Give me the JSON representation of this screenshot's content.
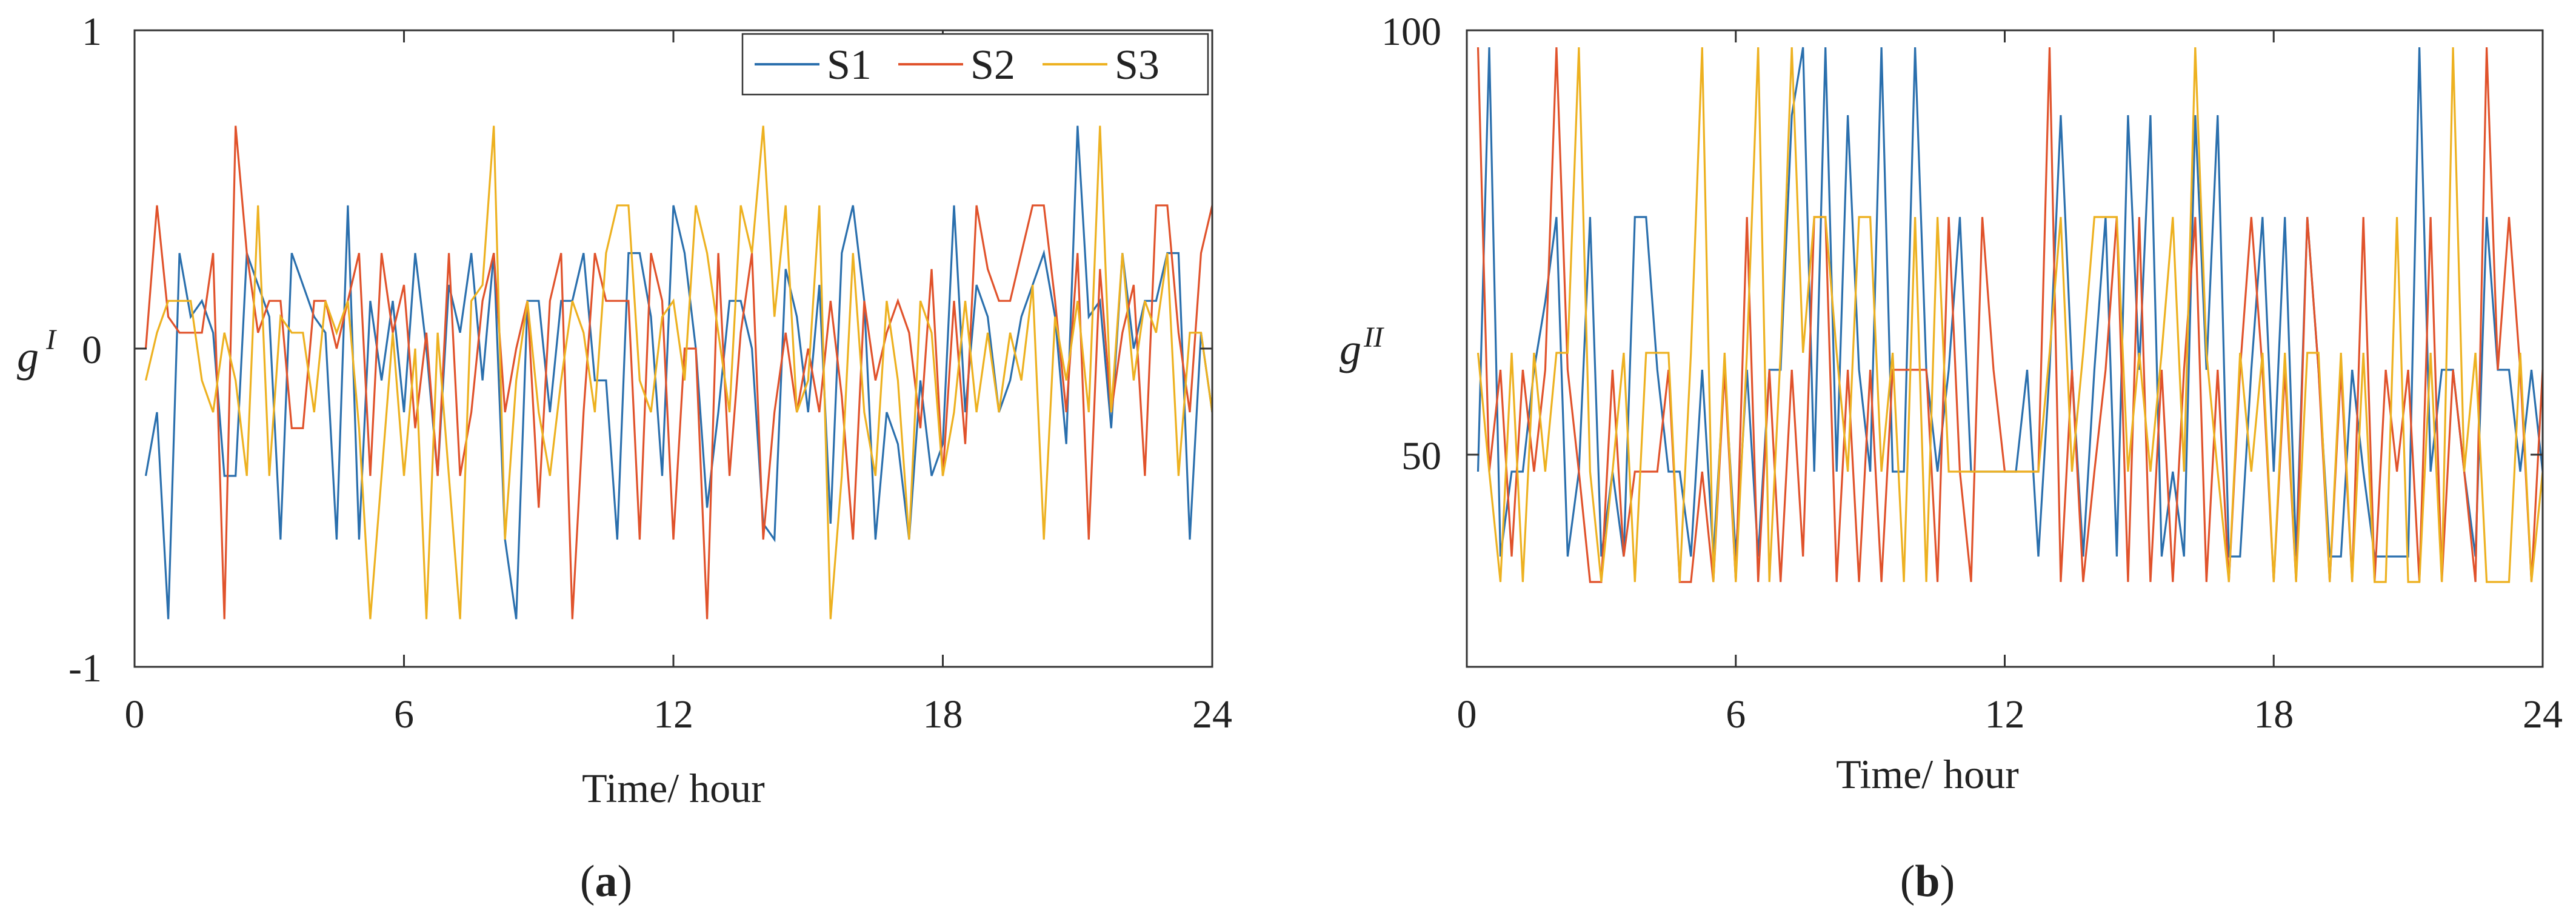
{
  "figure": {
    "panel_a_label": "a",
    "panel_b_label": "b",
    "paren_open": "(",
    "paren_close": ")"
  },
  "chart_data": [
    {
      "type": "line",
      "panel": "a",
      "xlabel": "Time/ hour",
      "ylabel": "g",
      "ylabel_sup": "I",
      "xlim": [
        0,
        24
      ],
      "ylim": [
        -1,
        1
      ],
      "xticks": [
        "0",
        "6",
        "12",
        "18",
        "24"
      ],
      "yticks": [
        "1",
        "0",
        "-1"
      ],
      "ytick_values": [
        1,
        0,
        -1
      ],
      "legend_position": "top-right",
      "x": [
        0.25,
        0.5,
        0.75,
        1,
        1.25,
        1.5,
        1.75,
        2,
        2.25,
        2.5,
        2.75,
        3,
        3.25,
        3.5,
        3.75,
        4,
        4.25,
        4.5,
        4.75,
        5,
        5.25,
        5.5,
        5.75,
        6,
        6.25,
        6.5,
        6.75,
        7,
        7.25,
        7.5,
        7.75,
        8,
        8.25,
        8.5,
        8.75,
        9,
        9.25,
        9.5,
        9.75,
        10,
        10.25,
        10.5,
        10.75,
        11,
        11.25,
        11.5,
        11.75,
        12,
        12.25,
        12.5,
        12.75,
        13,
        13.25,
        13.5,
        13.75,
        14,
        14.25,
        14.5,
        14.75,
        15,
        15.25,
        15.5,
        15.75,
        16,
        16.25,
        16.5,
        16.75,
        17,
        17.25,
        17.5,
        17.75,
        18,
        18.25,
        18.5,
        18.75,
        19,
        19.25,
        19.5,
        19.75,
        20,
        20.25,
        20.5,
        20.75,
        21,
        21.25,
        21.5,
        21.75,
        22,
        22.25,
        22.5,
        22.75,
        23,
        23.25,
        23.5,
        23.75,
        24
      ],
      "series": [
        {
          "name": "S1",
          "color": "#2a6fad",
          "values": [
            -0.4,
            -0.2,
            -0.85,
            0.3,
            0.1,
            0.15,
            0.05,
            -0.4,
            -0.4,
            0.3,
            0.2,
            0.1,
            -0.6,
            0.3,
            0.2,
            0.1,
            0.05,
            -0.6,
            0.45,
            -0.6,
            0.15,
            -0.1,
            0.15,
            -0.2,
            0.3,
            0,
            -0.4,
            0.2,
            0.05,
            0.3,
            -0.1,
            0.3,
            -0.6,
            -0.85,
            0.15,
            0.15,
            -0.2,
            0.15,
            0.15,
            0.3,
            -0.1,
            -0.1,
            -0.6,
            0.3,
            0.3,
            0.1,
            -0.4,
            0.45,
            0.3,
            0,
            -0.5,
            -0.2,
            0.15,
            0.15,
            0,
            -0.55,
            -0.6,
            0.25,
            0.1,
            -0.2,
            0.2,
            -0.55,
            0.3,
            0.45,
            0.15,
            -0.6,
            -0.2,
            -0.3,
            -0.6,
            -0.1,
            -0.4,
            -0.3,
            0.45,
            -0.2,
            0.2,
            0.1,
            -0.2,
            -0.1,
            0.1,
            0.2,
            0.3,
            0.1,
            -0.3,
            0.7,
            0.1,
            0.15,
            -0.25,
            0.3,
            0,
            0.15,
            0.15,
            0.3,
            0.3,
            -0.6,
            0.05,
            -0.2
          ]
        },
        {
          "name": "S2",
          "color": "#e0522b",
          "values": [
            0,
            0.45,
            0.1,
            0.05,
            0.05,
            0.05,
            0.3,
            -0.85,
            0.7,
            0.3,
            0.05,
            0.15,
            0.15,
            -0.25,
            -0.25,
            0.15,
            0.15,
            0,
            0.15,
            0.3,
            -0.4,
            0.3,
            0.05,
            0.2,
            -0.25,
            0.05,
            -0.4,
            0.3,
            -0.4,
            -0.2,
            0.15,
            0.3,
            -0.2,
            0,
            0.15,
            -0.5,
            0.15,
            0.3,
            -0.85,
            -0.2,
            0.3,
            0.15,
            0.15,
            0.15,
            -0.6,
            0.3,
            0.15,
            -0.6,
            0,
            0,
            -0.85,
            0.3,
            -0.4,
            0.05,
            0.3,
            -0.6,
            -0.2,
            0.05,
            -0.2,
            0,
            -0.2,
            0.15,
            -0.15,
            -0.6,
            0.15,
            -0.1,
            0.05,
            0.15,
            0.05,
            -0.25,
            0.25,
            -0.4,
            0.15,
            -0.3,
            0.45,
            0.25,
            0.15,
            0.15,
            0.3,
            0.45,
            0.45,
            0.15,
            -0.2,
            0.3,
            -0.6,
            0.25,
            -0.2,
            0.05,
            0.2,
            -0.4,
            0.45,
            0.45,
            0.05,
            -0.2,
            0.3,
            0.45
          ]
        },
        {
          "name": "S3",
          "color": "#edb120",
          "values": [
            -0.1,
            0.05,
            0.15,
            0.15,
            0.15,
            -0.1,
            -0.2,
            0.05,
            -0.1,
            -0.4,
            0.45,
            -0.4,
            0.1,
            0.05,
            0.05,
            -0.2,
            0.15,
            0.05,
            0.15,
            -0.25,
            -0.85,
            -0.4,
            0.05,
            -0.4,
            0,
            -0.85,
            0.05,
            -0.4,
            -0.85,
            0.15,
            0.2,
            0.7,
            -0.6,
            -0.1,
            0.15,
            -0.2,
            -0.4,
            -0.1,
            0.15,
            0.05,
            -0.2,
            0.3,
            0.45,
            0.45,
            -0.1,
            -0.2,
            0.1,
            0.15,
            -0.1,
            0.45,
            0.3,
            0.05,
            -0.2,
            0.45,
            0.3,
            0.7,
            0.1,
            0.45,
            -0.2,
            -0.1,
            0.45,
            -0.85,
            -0.4,
            0.3,
            -0.2,
            -0.4,
            0.15,
            -0.1,
            -0.6,
            0.15,
            0.05,
            -0.4,
            -0.2,
            0.15,
            -0.2,
            0.05,
            -0.2,
            0.05,
            -0.1,
            0.2,
            -0.6,
            0.1,
            -0.1,
            0.15,
            -0.2,
            0.7,
            -0.2,
            0.3,
            -0.1,
            0.15,
            0.05,
            0.3,
            -0.4,
            0.05,
            0.05,
            -0.2
          ]
        }
      ]
    },
    {
      "type": "line",
      "panel": "b",
      "xlabel": "Time/ hour",
      "ylabel": "g",
      "ylabel_sup": "II",
      "xlim": [
        0,
        24
      ],
      "ylim": [
        25,
        100
      ],
      "xticks": [
        "0",
        "6",
        "12",
        "18",
        "24"
      ],
      "yticks": [
        "100",
        "50"
      ],
      "ytick_values": [
        100,
        50
      ],
      "x": [
        0.25,
        0.5,
        0.75,
        1,
        1.25,
        1.5,
        1.75,
        2,
        2.25,
        2.5,
        2.75,
        3,
        3.25,
        3.5,
        3.75,
        4,
        4.25,
        4.5,
        4.75,
        5,
        5.25,
        5.5,
        5.75,
        6,
        6.25,
        6.5,
        6.75,
        7,
        7.25,
        7.5,
        7.75,
        8,
        8.25,
        8.5,
        8.75,
        9,
        9.25,
        9.5,
        9.75,
        10,
        10.25,
        10.5,
        10.75,
        11,
        11.25,
        11.5,
        11.75,
        12,
        12.25,
        12.5,
        12.75,
        13,
        13.25,
        13.5,
        13.75,
        14,
        14.25,
        14.5,
        14.75,
        15,
        15.25,
        15.5,
        15.75,
        16,
        16.25,
        16.5,
        16.75,
        17,
        17.25,
        17.5,
        17.75,
        18,
        18.25,
        18.5,
        18.75,
        19,
        19.25,
        19.5,
        19.75,
        20,
        20.25,
        20.5,
        20.75,
        21,
        21.25,
        21.5,
        21.75,
        22,
        22.25,
        22.5,
        22.75,
        23,
        23.25,
        23.5,
        23.75,
        24
      ],
      "series": [
        {
          "name": "S1",
          "color": "#2a6fad",
          "values": [
            48,
            98,
            38,
            48,
            48,
            60,
            68,
            78,
            38,
            48,
            78,
            38,
            48,
            38,
            78,
            78,
            60,
            48,
            48,
            38,
            60,
            38,
            60,
            38,
            60,
            38,
            60,
            60,
            90,
            98,
            48,
            98,
            48,
            90,
            60,
            48,
            98,
            48,
            48,
            98,
            60,
            48,
            60,
            78,
            48,
            48,
            48,
            48,
            48,
            60,
            38,
            60,
            90,
            60,
            38,
            60,
            78,
            38,
            90,
            60,
            90,
            38,
            48,
            38,
            90,
            60,
            90,
            38,
            38,
            60,
            78,
            48,
            78,
            38,
            78,
            60,
            38,
            38,
            60,
            48,
            38,
            38,
            38,
            38,
            98,
            48,
            60,
            60,
            48,
            38,
            78,
            60,
            60,
            48,
            60,
            48
          ]
        },
        {
          "name": "S2",
          "color": "#e0522b",
          "values": [
            98,
            48,
            60,
            38,
            60,
            48,
            60,
            98,
            60,
            48,
            35,
            35,
            60,
            38,
            48,
            48,
            48,
            60,
            35,
            35,
            48,
            35,
            60,
            35,
            78,
            35,
            60,
            35,
            60,
            38,
            78,
            78,
            35,
            60,
            35,
            60,
            35,
            60,
            60,
            60,
            60,
            35,
            78,
            48,
            35,
            78,
            60,
            48,
            48,
            48,
            48,
            98,
            35,
            60,
            35,
            48,
            60,
            78,
            35,
            78,
            35,
            60,
            35,
            60,
            78,
            35,
            60,
            35,
            60,
            78,
            60,
            35,
            60,
            35,
            78,
            60,
            35,
            60,
            35,
            78,
            35,
            60,
            48,
            60,
            35,
            78,
            35,
            60,
            48,
            35,
            98,
            60,
            78,
            60,
            35,
            60
          ]
        },
        {
          "name": "S3",
          "color": "#edb120",
          "values": [
            62,
            48,
            35,
            62,
            35,
            62,
            48,
            62,
            62,
            98,
            48,
            35,
            48,
            62,
            35,
            62,
            62,
            62,
            35,
            62,
            98,
            35,
            62,
            35,
            62,
            98,
            35,
            62,
            98,
            62,
            78,
            78,
            62,
            48,
            78,
            78,
            48,
            62,
            35,
            78,
            35,
            78,
            48,
            48,
            48,
            48,
            48,
            48,
            48,
            48,
            48,
            62,
            78,
            48,
            62,
            78,
            78,
            78,
            48,
            62,
            48,
            62,
            78,
            48,
            98,
            62,
            48,
            35,
            62,
            48,
            62,
            35,
            62,
            35,
            62,
            62,
            35,
            62,
            35,
            62,
            35,
            35,
            78,
            35,
            35,
            62,
            35,
            98,
            48,
            62,
            35,
            35,
            35,
            62,
            35,
            48
          ]
        }
      ]
    }
  ]
}
